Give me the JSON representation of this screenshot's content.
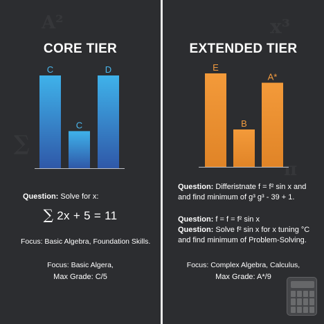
{
  "core": {
    "title": "CORE TIER",
    "question_label": "Question:",
    "question_text": "Solve for x:",
    "equation_symbol": "∑",
    "equation_text": "2x + 5 = 11",
    "focus": "Focus: Basic Algebra, Foundation Skills.",
    "focus2": "Focus: Basic Algera,",
    "max_grade": "Max Grade: C/5"
  },
  "extended": {
    "title": "EXTENDED TIER",
    "q1_label": "Question:",
    "q1_line1": "Differistnate f = f² sin x and",
    "q1_line2": "and find minimum of g³ g³ - 39 + 1.",
    "q2_label": "Question:",
    "q2_line1": "f = f = f² sin x",
    "q3_label": "Question:",
    "q3_line1": "Solve f² sin x for x tuning °C",
    "q3_line2": "and find minimum of Problem-Solving.",
    "focus": "Focus: Complex Algebra, Calculus,",
    "max_grade": "Max Grade: A*/9"
  },
  "colors": {
    "background": "#2c2d30",
    "core_bar_top": "#3fb2ea",
    "core_bar_bottom": "#2f58a8",
    "core_label": "#4bb8ee",
    "extended_bar": "#ee9232",
    "extended_label": "#f29b3f",
    "divider": "#e9e9e9"
  },
  "icons": [
    "calculator-icon"
  ],
  "chart_data": [
    {
      "type": "bar",
      "title": "CORE TIER",
      "categories": [
        "C",
        "C",
        "D"
      ],
      "values": [
        5,
        2,
        5
      ],
      "bar_labels": [
        "C",
        "C",
        "D"
      ]
    },
    {
      "type": "bar",
      "title": "EXTENDED TIER",
      "categories": [
        "E",
        "B",
        "A*"
      ],
      "values": [
        5,
        2,
        4.5
      ],
      "bar_labels": [
        "E",
        "B",
        "A*"
      ]
    }
  ]
}
